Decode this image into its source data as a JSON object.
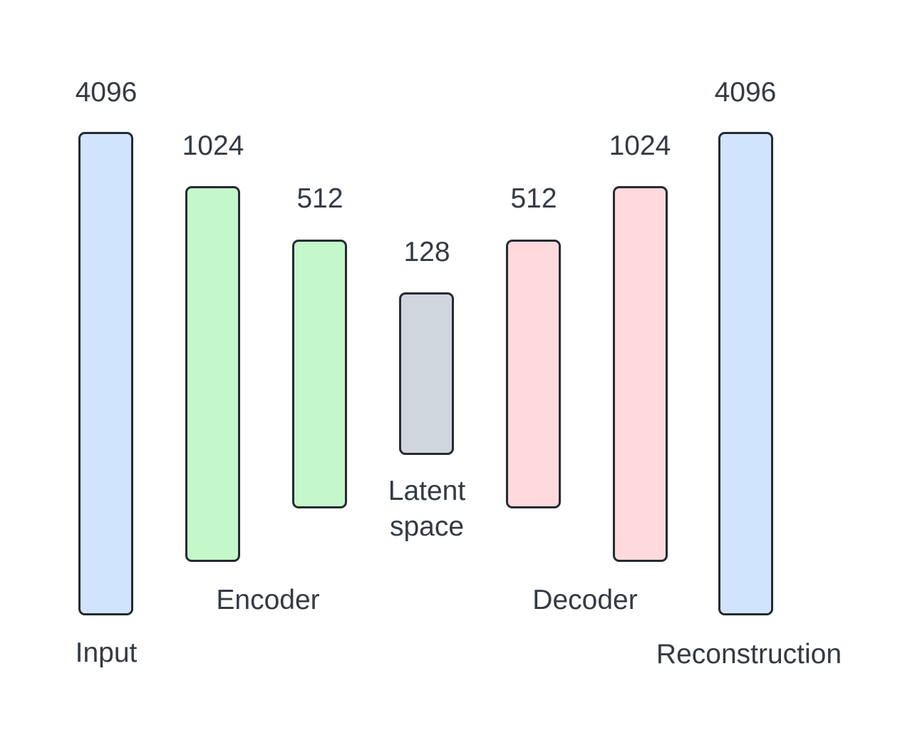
{
  "layers": [
    {
      "id": "input",
      "size": "4096",
      "color": "#d0e4fd"
    },
    {
      "id": "encoder-1",
      "size": "1024",
      "color": "#c4f7c9"
    },
    {
      "id": "encoder-2",
      "size": "512",
      "color": "#c4f7c9"
    },
    {
      "id": "latent",
      "size": "128",
      "color": "#cfd6de"
    },
    {
      "id": "decoder-1",
      "size": "512",
      "color": "#ffd9dc"
    },
    {
      "id": "decoder-2",
      "size": "1024",
      "color": "#ffd9dc"
    },
    {
      "id": "output",
      "size": "4096",
      "color": "#d0e4fd"
    }
  ],
  "labels": {
    "input": "Input",
    "encoder": "Encoder",
    "latent": "Latent space",
    "decoder": "Decoder",
    "output": "Reconstruction"
  },
  "colors": {
    "border": "#262a31",
    "text": "#343a45",
    "background": "#ffffff"
  }
}
